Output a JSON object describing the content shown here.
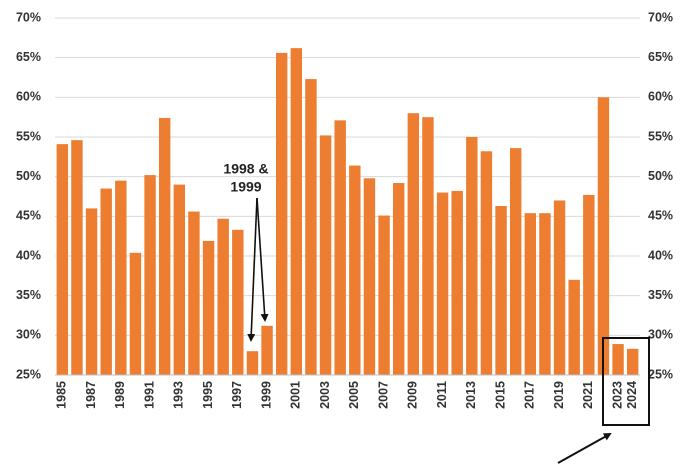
{
  "chart_data": {
    "type": "bar",
    "categories": [
      "1985",
      null,
      "1987",
      null,
      "1989",
      null,
      "1991",
      null,
      "1993",
      null,
      "1995",
      null,
      "1997",
      null,
      "1999",
      null,
      "2001",
      null,
      "2003",
      null,
      "2005",
      null,
      "2007",
      null,
      "2009",
      null,
      "2011",
      null,
      "2013",
      null,
      "2015",
      null,
      "2017",
      null,
      "2019",
      null,
      "2021",
      null,
      "2023",
      "2024"
    ],
    "values": [
      54.1,
      54.6,
      46,
      48.5,
      49.5,
      40.4,
      50.2,
      57.4,
      49,
      45.6,
      41.9,
      44.7,
      43.3,
      28,
      31.2,
      65.6,
      66.2,
      62.3,
      55.2,
      57.1,
      51.4,
      49.8,
      45.1,
      49.2,
      58,
      57.5,
      48,
      48.2,
      55,
      53.2,
      46.3,
      53.6,
      45.4,
      45.4,
      47,
      37,
      47.7,
      60,
      28.9,
      28.3
    ],
    "color": "#ed7d31",
    "ylim": [
      25,
      70
    ],
    "yticks": [
      {
        "value": 25,
        "label": "25%"
      },
      {
        "value": 30,
        "label": "30%"
      },
      {
        "value": 35,
        "label": "35%"
      },
      {
        "value": 40,
        "label": "40%"
      },
      {
        "value": 45,
        "label": "45%"
      },
      {
        "value": 50,
        "label": "50%"
      },
      {
        "value": 55,
        "label": "55%"
      },
      {
        "value": 60,
        "label": "60%"
      },
      {
        "value": 65,
        "label": "65%"
      },
      {
        "value": 70,
        "label": "70%"
      }
    ],
    "y2lim": [
      25,
      70
    ],
    "y2ticks": [
      {
        "value": 25,
        "label": "25%"
      },
      {
        "value": 30,
        "label": "30%"
      },
      {
        "value": 35,
        "label": "35%"
      },
      {
        "value": 40,
        "label": "40%"
      },
      {
        "value": 45,
        "label": "45%"
      },
      {
        "value": 50,
        "label": "50%"
      },
      {
        "value": 55,
        "label": "55%"
      },
      {
        "value": 60,
        "label": "60%"
      },
      {
        "value": 65,
        "label": "65%"
      },
      {
        "value": 70,
        "label": "70%"
      }
    ],
    "grid": true,
    "annotation": [
      "1998 &",
      "1999"
    ]
  }
}
